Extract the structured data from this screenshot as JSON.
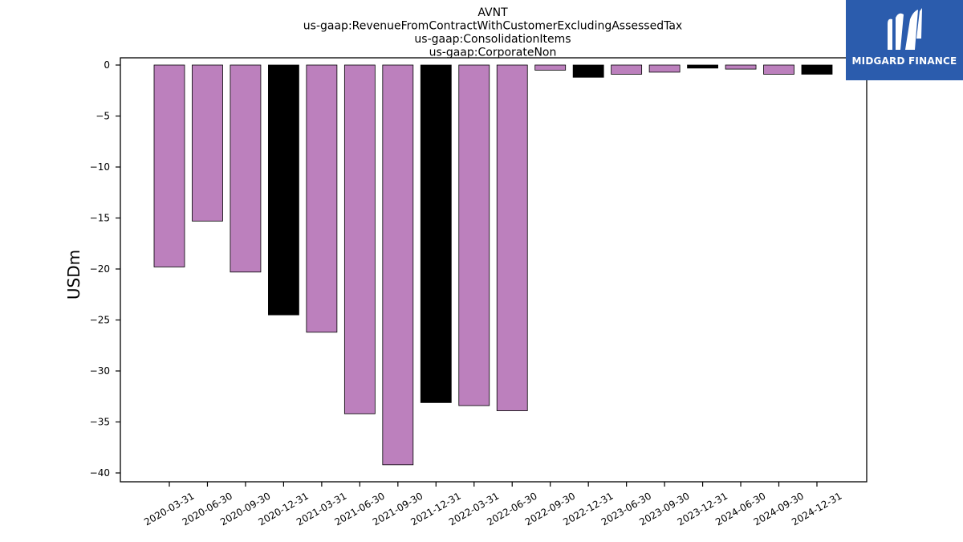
{
  "chart_data": {
    "type": "bar",
    "title_lines": [
      "AVNT",
      "us-gaap:RevenueFromContractWithCustomerExcludingAssessedTax",
      "us-gaap:ConsolidationItems",
      "us-gaap:CorporateNon"
    ],
    "ylabel": "USDm",
    "xlabel": "",
    "ylim": [
      -41,
      0
    ],
    "yticks": [
      0,
      -5,
      -10,
      -15,
      -20,
      -25,
      -30,
      -35,
      -40
    ],
    "categories": [
      "2020-03-31",
      "2020-06-30",
      "2020-09-30",
      "2020-12-31",
      "2021-03-31",
      "2021-06-30",
      "2021-09-30",
      "2021-12-31",
      "2022-03-31",
      "2022-06-30",
      "2022-09-30",
      "2022-12-31",
      "2023-06-30",
      "2023-09-30",
      "2023-12-31",
      "2024-06-30",
      "2024-09-30",
      "2024-12-31"
    ],
    "values": [
      -19.8,
      -15.3,
      -20.3,
      -24.5,
      -26.2,
      -34.2,
      -39.2,
      -33.1,
      -33.4,
      -33.9,
      -0.5,
      -1.2,
      -0.9,
      -0.7,
      -0.3,
      -0.4,
      -0.9,
      -0.9
    ],
    "colors": [
      "#bc80bd",
      "#bc80bd",
      "#bc80bd",
      "#000000",
      "#bc80bd",
      "#bc80bd",
      "#bc80bd",
      "#000000",
      "#bc80bd",
      "#bc80bd",
      "#bc80bd",
      "#000000",
      "#bc80bd",
      "#bc80bd",
      "#000000",
      "#bc80bd",
      "#bc80bd",
      "#000000"
    ],
    "grid": false,
    "legend": "none"
  },
  "logo": {
    "text": "MIDGARD FINANCE",
    "icon": "midgard-logo-icon",
    "color": "#2b5cad"
  }
}
